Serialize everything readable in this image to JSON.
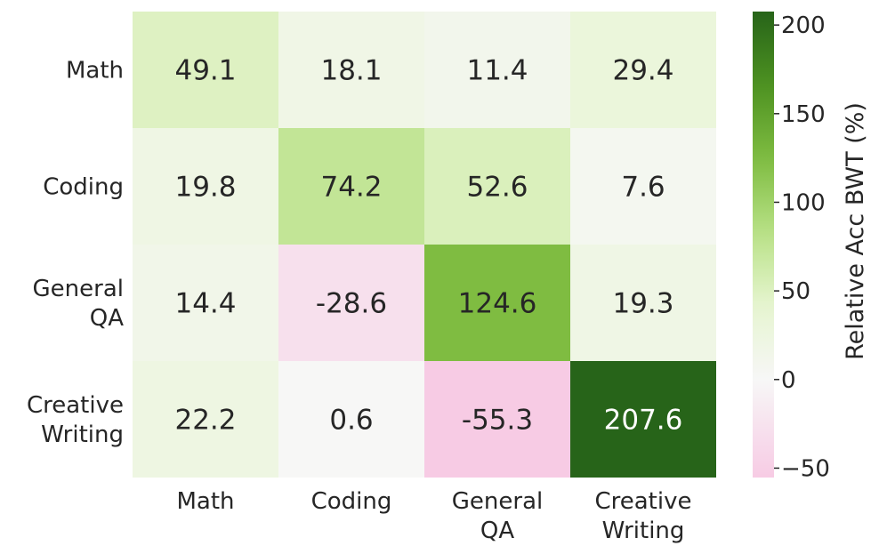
{
  "chart_data": {
    "type": "heatmap",
    "rows": [
      [
        "Math"
      ],
      [
        "Coding"
      ],
      [
        "General",
        "QA"
      ],
      [
        "Creative",
        "Writing"
      ]
    ],
    "columns": [
      [
        "Math"
      ],
      [
        "Coding"
      ],
      [
        "General",
        "QA"
      ],
      [
        "Creative",
        "Writing"
      ]
    ],
    "values": [
      [
        49.1,
        18.1,
        11.4,
        29.4
      ],
      [
        19.8,
        74.2,
        52.6,
        7.6
      ],
      [
        14.4,
        -28.6,
        124.6,
        19.3
      ],
      [
        22.2,
        0.6,
        -55.3,
        207.6
      ]
    ],
    "value_labels": [
      [
        "49.1",
        "18.1",
        "11.4",
        "29.4"
      ],
      [
        "19.8",
        "74.2",
        "52.6",
        "7.6"
      ],
      [
        "14.4",
        "-28.6",
        "124.6",
        "19.3"
      ],
      [
        "22.2",
        "0.6",
        "-55.3",
        "207.6"
      ]
    ],
    "colorbar": {
      "label": "Relative Acc BWT (%)",
      "range": [
        -55.3,
        207.6
      ],
      "center": 0,
      "ticks": [
        -50,
        0,
        50,
        100,
        150,
        200
      ],
      "tick_labels": [
        "−50",
        "0",
        "50",
        "100",
        "150",
        "200"
      ],
      "colormap": "PiYG",
      "colors": {
        "negative_end": "#f7cbe4",
        "center": "#f7f7f7",
        "positive_stops": [
          "#f7f7f7",
          "#e6f5d0",
          "#b8e186",
          "#7fbc41",
          "#4d9221",
          "#276419"
        ]
      }
    },
    "text_colors": {
      "dark": "#262626",
      "light": "#ffffff"
    }
  }
}
